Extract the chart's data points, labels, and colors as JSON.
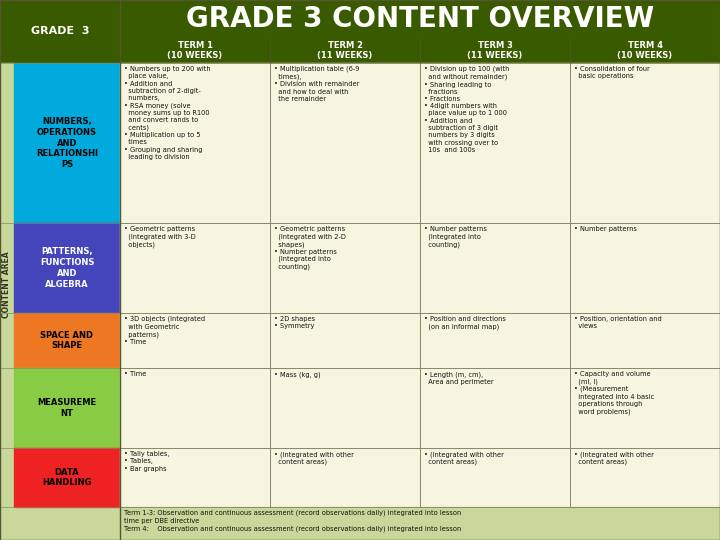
{
  "title": "GRADE 3 CONTENT OVERVIEW",
  "grade_label": "GRADE  3",
  "bg_color": "#c8d89a",
  "header_bg": "#3a5a00",
  "header_title_color": "#ffffff",
  "grade_cell_color": "#3a5a00",
  "grade_text_color": "#ffffff",
  "term_header_color": "#3a5a00",
  "term_text_color": "#ffffff",
  "content_area_label": "CONTENT AREA",
  "cell_bg": "#f5f5e0",
  "rows": [
    {
      "label": "NUMBERS,\nOPERATIONS\nAND\nRELATIONSHI\nPS",
      "label_color": "#00aadd",
      "label_text_color": "#000000",
      "term1": "• Numbers up to 200 with\n  place value,\n• Addition and\n  subtraction of 2-digit-\n  numbers,\n• RSA money (solve\n  money sums up to R100\n  and convert rands to\n  cents)\n• Multiplication up to 5\n  times\n• Grouping and sharing\n  leading to division",
      "term2": "• Multiplication table (6-9\n  times),\n• Division with remainder\n  and how to deal with\n  the remainder",
      "term3": "• Division up to 100 (with\n  and without remainder)\n• Sharing leading to\n  fractions\n• Fractions\n• 4digit numbers with\n  place value up to 1 000\n• Addition and\n  subtraction of 3 digit\n  numbers by 3 digits\n  with crossing over to\n  10s  and 100s",
      "term4": "• Consolidation of four\n  basic operations"
    },
    {
      "label": "PATTERNS,\nFUNCTIONS\nAND\nALGEBRA",
      "label_color": "#4444bb",
      "label_text_color": "#ffffff",
      "term1": "• Geometric patterns\n  (Integrated with 3-D\n  objects)",
      "term2": "• Geometric patterns\n  (Integrated with 2-D\n  shapes)\n• Number patterns\n  (Integrated into\n  counting)",
      "term3": "• Number patterns\n  (Integrated into\n  counting)",
      "term4": "• Number patterns"
    },
    {
      "label": "SPACE AND\nSHAPE",
      "label_color": "#ee7722",
      "label_text_color": "#000000",
      "term1": "• 3D objects (Integrated\n  with Geometric\n  patterns)\n• Time",
      "term2": "• 2D shapes\n• Symmetry",
      "term3": "• Position and directions\n  (on an informal map)",
      "term4": "• Position, orientation and\n  views"
    },
    {
      "label": "MEASUREME\nNT",
      "label_color": "#88cc44",
      "label_text_color": "#000000",
      "term1": "• Time",
      "term2": "• Mass (kg, g)",
      "term3": "• Length (m, cm),\n  Area and perimeter",
      "term4": "• Capacity and volume\n  (ml, l)\n• (Measurement\n  integrated into 4 basic\n  operations through\n  word problems)"
    },
    {
      "label": "DATA\nHANDLING",
      "label_color": "#ee2222",
      "label_text_color": "#000000",
      "term1": "• Tally tables,\n• Tables,\n• Bar graphs",
      "term2": "• (Integrated with other\n  content areas)",
      "term3": "• (Integrated with other\n  content areas)",
      "term4": "• (Integrated with other\n  content areas)"
    }
  ],
  "footer": "Term 1-3: Observation and continuous assessment (record observations daily) integrated into lesson\ntime per DBE directive\nTerm 4:    Observation and continuous assessment (record observations daily) integrated into lesson",
  "terms": [
    "TERM 1\n(10 WEEKS)",
    "TERM 2\n(11 WEEKS)",
    "TERM 3\n(11 WEEKS)",
    "TERM 4\n(10 WEEKS)"
  ]
}
